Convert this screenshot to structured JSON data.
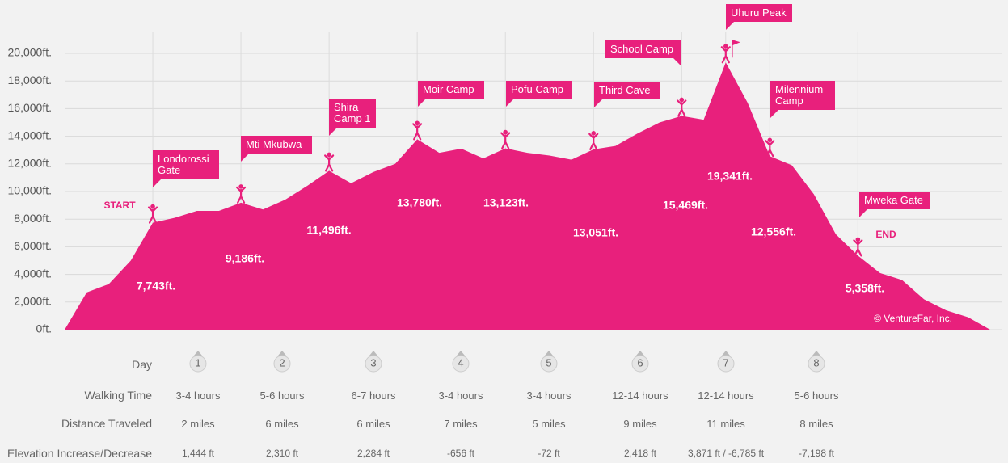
{
  "chart_data": {
    "type": "area",
    "color": "#e8207c",
    "ylim": [
      0,
      20000
    ],
    "yticks": [
      {
        "value": 0,
        "label": "0ft."
      },
      {
        "value": 2000,
        "label": "2,000ft."
      },
      {
        "value": 4000,
        "label": "4,000ft."
      },
      {
        "value": 6000,
        "label": "6,000ft."
      },
      {
        "value": 8000,
        "label": "8,000ft."
      },
      {
        "value": 10000,
        "label": "10,000ft."
      },
      {
        "value": 12000,
        "label": "12,000ft."
      },
      {
        "value": 14000,
        "label": "14,000ft."
      },
      {
        "value": 16000,
        "label": "16,000ft."
      },
      {
        "value": 18000,
        "label": "18,000ft."
      },
      {
        "value": 20000,
        "label": "20,000ft."
      }
    ],
    "grid": true,
    "categories": [
      null,
      null,
      null,
      null,
      "Londorossi Gate",
      null,
      null,
      null,
      "Mti Mkubwa",
      null,
      null,
      null,
      "Shira Camp 1",
      null,
      null,
      null,
      "Moir Camp",
      null,
      null,
      null,
      "Pofu Camp",
      null,
      null,
      null,
      "Third Cave",
      null,
      null,
      null,
      "School Camp",
      null,
      "Uhuru Peak",
      null,
      "Milennium Camp",
      null,
      null,
      null,
      "Mweka Gate",
      null,
      null,
      null,
      null,
      null,
      null
    ],
    "values": [
      0,
      2700,
      3300,
      5000,
      7743,
      8100,
      8600,
      8600,
      9186,
      8700,
      9400,
      10400,
      11496,
      10600,
      11400,
      12000,
      13780,
      12800,
      13100,
      12400,
      13123,
      12800,
      12600,
      12300,
      13051,
      13300,
      14200,
      15000,
      15469,
      15200,
      19341,
      16400,
      12556,
      11900,
      9800,
      6900,
      5358,
      4100,
      3600,
      2200,
      1400,
      900,
      0
    ],
    "value_labels": [
      null,
      null,
      null,
      null,
      "7,743ft.",
      null,
      null,
      null,
      "9,186ft.",
      null,
      null,
      null,
      "11,496ft.",
      null,
      null,
      null,
      "13,780ft.",
      null,
      null,
      null,
      "13,123ft.",
      null,
      null,
      null,
      "13,051ft.",
      null,
      null,
      null,
      "15,469ft.",
      null,
      "19,341ft.",
      null,
      "12,556ft.",
      null,
      null,
      null,
      "5,358ft.",
      null,
      null,
      null,
      null,
      null,
      null
    ],
    "annotations": {
      "start": "START",
      "end": "END",
      "credit": "© VentureFar, Inc."
    },
    "table": {
      "rows": [
        {
          "label": "Day",
          "cells": [
            1,
            2,
            3,
            4,
            5,
            6,
            7,
            8
          ]
        },
        {
          "label": "Walking Time",
          "cells": [
            "3-4 hours",
            "5-6 hours",
            "6-7 hours",
            "3-4 hours",
            "3-4 hours",
            "12-14 hours",
            "12-14 hours",
            "5-6 hours"
          ]
        },
        {
          "label": "Distance Traveled",
          "cells": [
            "2 miles",
            "6 miles",
            "6 miles",
            "7 miles",
            "5 miles",
            "9 miles",
            "11 miles",
            "8 miles"
          ]
        },
        {
          "label": "Elevation Increase/Decrease",
          "cells": [
            "1,444 ft",
            "2,310 ft",
            "2,284 ft",
            "-656 ft",
            "-72 ft",
            "2,418 ft",
            "3,871 ft / -6,785 ft",
            "-7,198 ft"
          ]
        }
      ]
    }
  }
}
